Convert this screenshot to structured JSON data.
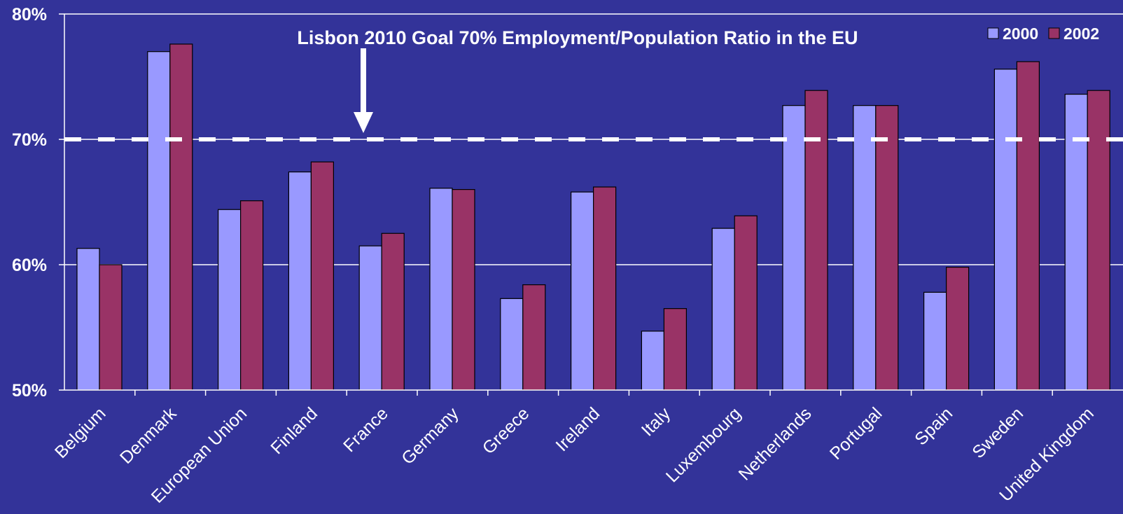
{
  "chart_data": {
    "type": "bar",
    "title": "",
    "xlabel": "",
    "ylabel": "",
    "ylim": [
      50,
      80
    ],
    "yticks": [
      50,
      60,
      70,
      80
    ],
    "ytick_labels": [
      "50%",
      "60%",
      "70%",
      "80%"
    ],
    "grid": "horizontal",
    "legend_position": "top-right",
    "categories": [
      "Belgium",
      "Denmark",
      "European Union",
      "Finland",
      "France",
      "Germany",
      "Greece",
      "Ireland",
      "Italy",
      "Luxembourg",
      "Netherlands",
      "Portugal",
      "Spain",
      "Sweden",
      "United Kingdom"
    ],
    "series": [
      {
        "name": "2000",
        "color": "#9999ff",
        "values": [
          61.3,
          77.0,
          64.4,
          67.4,
          61.5,
          66.1,
          57.3,
          65.8,
          54.7,
          62.9,
          72.7,
          72.7,
          57.8,
          75.6,
          73.6
        ]
      },
      {
        "name": "2002",
        "color": "#993366",
        "values": [
          60.0,
          77.6,
          65.1,
          68.2,
          62.5,
          66.0,
          58.4,
          66.2,
          56.5,
          63.9,
          73.9,
          72.7,
          59.8,
          76.2,
          73.9
        ]
      }
    ],
    "reference_line": {
      "value": 70,
      "style": "dashed",
      "color": "#ffffff"
    },
    "annotation": {
      "text": "Lisbon 2010 Goal 70% Employment/Population Ratio in the EU",
      "arrow_target_value": 70
    }
  }
}
